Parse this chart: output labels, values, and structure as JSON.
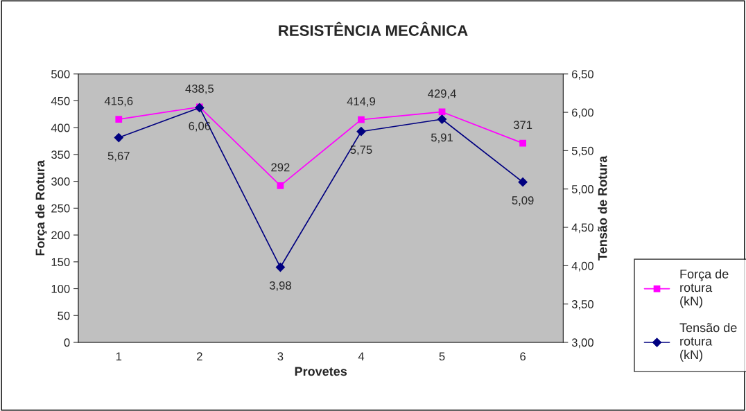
{
  "chart_data": {
    "type": "line",
    "title": "RESISTÊNCIA MECÂNICA",
    "xlabel": "Provetes",
    "ylabel": "Força de Rotura",
    "y2label": "Tensão de Rotura",
    "categories": [
      "1",
      "2",
      "3",
      "4",
      "5",
      "6"
    ],
    "series": [
      {
        "name": "Força de\nrotura\n(kN)",
        "color": "#ff00ff",
        "marker": "square",
        "values": [
          415.6,
          438.5,
          292,
          414.9,
          429.4,
          371
        ],
        "value_labels": [
          "415,6",
          "438,5",
          "292",
          "414,9",
          "429,4",
          "371"
        ]
      },
      {
        "name": "Tensão de\nrotura\n(kN)",
        "color": "#000080",
        "marker": "diamond",
        "axis": "y2",
        "values": [
          5.67,
          6.06,
          3.98,
          5.75,
          5.91,
          5.09
        ],
        "value_labels": [
          "5,67",
          "6,06",
          "3,98",
          "5,75",
          "5,91",
          "5,09"
        ]
      }
    ],
    "ylim": [
      0,
      500
    ],
    "yticks": [
      0,
      50,
      100,
      150,
      200,
      250,
      300,
      350,
      400,
      450,
      500
    ],
    "y2lim": [
      3,
      6.5
    ],
    "y2ticks": [
      {
        "value": 3,
        "label": "3,00"
      },
      {
        "value": 3.5,
        "label": "3,50"
      },
      {
        "value": 4,
        "label": "4,00"
      },
      {
        "value": 4.5,
        "label": "4,50"
      },
      {
        "value": 5,
        "label": "5,00"
      },
      {
        "value": 5.5,
        "label": "5,50"
      },
      {
        "value": 6,
        "label": "6,00"
      },
      {
        "value": 6.5,
        "label": "6,50"
      }
    ],
    "grid": false,
    "legend": "right",
    "line_style": "solid"
  }
}
